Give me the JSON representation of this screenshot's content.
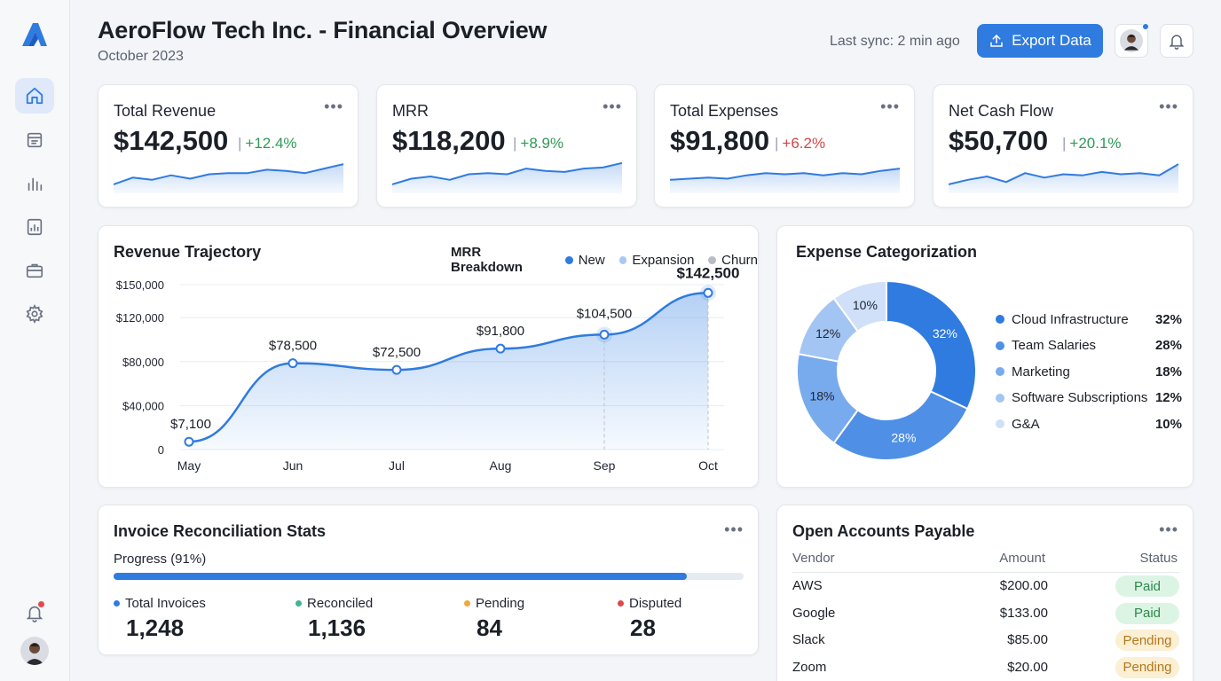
{
  "header": {
    "title": "AeroFlow Tech Inc. - Financial Overview",
    "subtitle": "October 2023",
    "sync_text": "Last sync: 2 min ago",
    "export_label": "Export Data"
  },
  "sidebar": {
    "items": [
      {
        "icon": "home-icon",
        "active": true
      },
      {
        "icon": "document-icon",
        "active": false
      },
      {
        "icon": "bar-chart-icon",
        "active": false
      },
      {
        "icon": "report-icon",
        "active": false
      },
      {
        "icon": "briefcase-icon",
        "active": false
      },
      {
        "icon": "gear-icon",
        "active": false
      }
    ]
  },
  "kpis": [
    {
      "label": "Total Revenue",
      "value": "$142,500",
      "change": "+12.4%",
      "change_color": "#2e9a55",
      "line_color": "#2f7be0",
      "spark": [
        8,
        14,
        12,
        16,
        13,
        17,
        18,
        18,
        21,
        20,
        18,
        22,
        26
      ]
    },
    {
      "label": "MRR",
      "value": "$118,200",
      "change": "+8.9%",
      "change_color": "#2e9a55",
      "line_color": "#2f7be0",
      "spark": [
        8,
        13,
        15,
        12,
        17,
        18,
        17,
        22,
        20,
        19,
        22,
        23,
        27
      ]
    },
    {
      "label": "Total Expenses",
      "value": "$91,800",
      "change": "+6.2%",
      "change_color": "#d64545",
      "line_color": "#2f7be0",
      "spark": [
        12,
        13,
        14,
        13,
        16,
        18,
        17,
        18,
        16,
        18,
        17,
        20,
        22
      ]
    },
    {
      "label": "Net Cash Flow",
      "value": "$50,700",
      "change": "+20.1%",
      "change_color": "#2e9a55",
      "line_color": "#2f7be0",
      "spark": [
        8,
        12,
        15,
        10,
        18,
        14,
        17,
        16,
        19,
        17,
        18,
        16,
        26
      ]
    }
  ],
  "revenue": {
    "title": "Revenue Trajectory",
    "legend_title": "MRR Breakdown",
    "legend": [
      {
        "label": "New",
        "color": "#2f7be0"
      },
      {
        "label": "Expansion",
        "color": "#a9c9f2"
      },
      {
        "label": "Churn",
        "color": "#b8bcc4"
      }
    ]
  },
  "chart_data": [
    {
      "type": "area",
      "title": "Revenue Trajectory",
      "categories": [
        "May",
        "Jun",
        "Jul",
        "Aug",
        "Sep",
        "Oct"
      ],
      "values": [
        7100,
        78500,
        72500,
        91800,
        104500,
        142500
      ],
      "value_labels": [
        "$7,100",
        "$78,500",
        "$72,500",
        "$91,800",
        "$104,500",
        "$142,500"
      ],
      "ytick_labels": [
        "0",
        "$40,000",
        "$80,000",
        "$120,000",
        "$150,000"
      ],
      "grid": true
    },
    {
      "type": "pie",
      "title": "Expense Categorization",
      "labels": [
        "Cloud Infrastructure",
        "Team Salaries",
        "Marketing",
        "Software Subscriptions",
        "G&A"
      ],
      "values": [
        32,
        28,
        18,
        12,
        10
      ],
      "pct_labels": [
        "32%",
        "28%",
        "18%",
        "12%",
        "10%"
      ],
      "colors": [
        "#2f7be0",
        "#4f8fe6",
        "#78aaee",
        "#a3c5f3",
        "#cfe0f8"
      ]
    }
  ],
  "expenses": {
    "title": "Expense Categorization"
  },
  "invoices": {
    "title": "Invoice Reconciliation Stats",
    "progress_label": "Progress (91%)",
    "progress": 0.91,
    "stats": [
      {
        "label": "Total Invoices",
        "value": "1,248",
        "color": "#2f7be0"
      },
      {
        "label": "Reconciled",
        "value": "1,136",
        "color": "#3fb29a"
      },
      {
        "label": "Pending",
        "value": "84",
        "color": "#f0a93a"
      },
      {
        "label": "Disputed",
        "value": "28",
        "color": "#e04848"
      }
    ]
  },
  "payables": {
    "title": "Open Accounts Payable",
    "headers": [
      "Vendor",
      "Amount",
      "Status"
    ],
    "rows": [
      {
        "vendor": "AWS",
        "amount": "$200.00",
        "status": "Paid"
      },
      {
        "vendor": "Google",
        "amount": "$133.00",
        "status": "Paid"
      },
      {
        "vendor": "Slack",
        "amount": "$85.00",
        "status": "Pending"
      },
      {
        "vendor": "Zoom",
        "amount": "$20.00",
        "status": "Pending"
      }
    ]
  },
  "menu_glyph": "•••"
}
